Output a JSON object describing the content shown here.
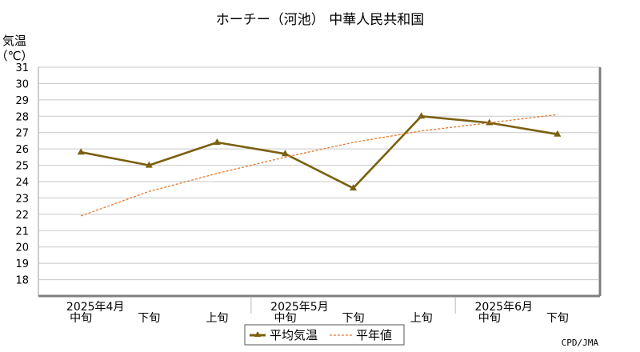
{
  "chart_data": {
    "type": "line",
    "title": "ホーチー（河池） 中華人民共和国",
    "ylabel_line1": "気温",
    "ylabel_line2": "（℃）",
    "ylim": [
      17,
      31
    ],
    "yticks": [
      18,
      19,
      20,
      21,
      22,
      23,
      24,
      25,
      26,
      27,
      28,
      29,
      30,
      31
    ],
    "categories": [
      "中旬",
      "下旬",
      "上旬",
      "中旬",
      "下旬",
      "上旬",
      "中旬",
      "下旬"
    ],
    "months": [
      {
        "label": "2025年4月",
        "at": 0
      },
      {
        "label": "2025年5月",
        "at": 3
      },
      {
        "label": "2025年6月",
        "at": 6
      }
    ],
    "series": [
      {
        "name": "平均気温",
        "color": "#7a6010",
        "marker": "triangle",
        "values": [
          25.8,
          25.0,
          26.4,
          25.7,
          23.6,
          28.0,
          27.6,
          26.9
        ]
      },
      {
        "name": "平年値",
        "color": "#e8762a",
        "dashed": true,
        "values": [
          21.9,
          23.4,
          24.5,
          25.5,
          26.4,
          27.1,
          27.6,
          28.1
        ]
      }
    ],
    "grid": true,
    "legend_position": "bottom-center",
    "credit": "CPD/JMA"
  }
}
